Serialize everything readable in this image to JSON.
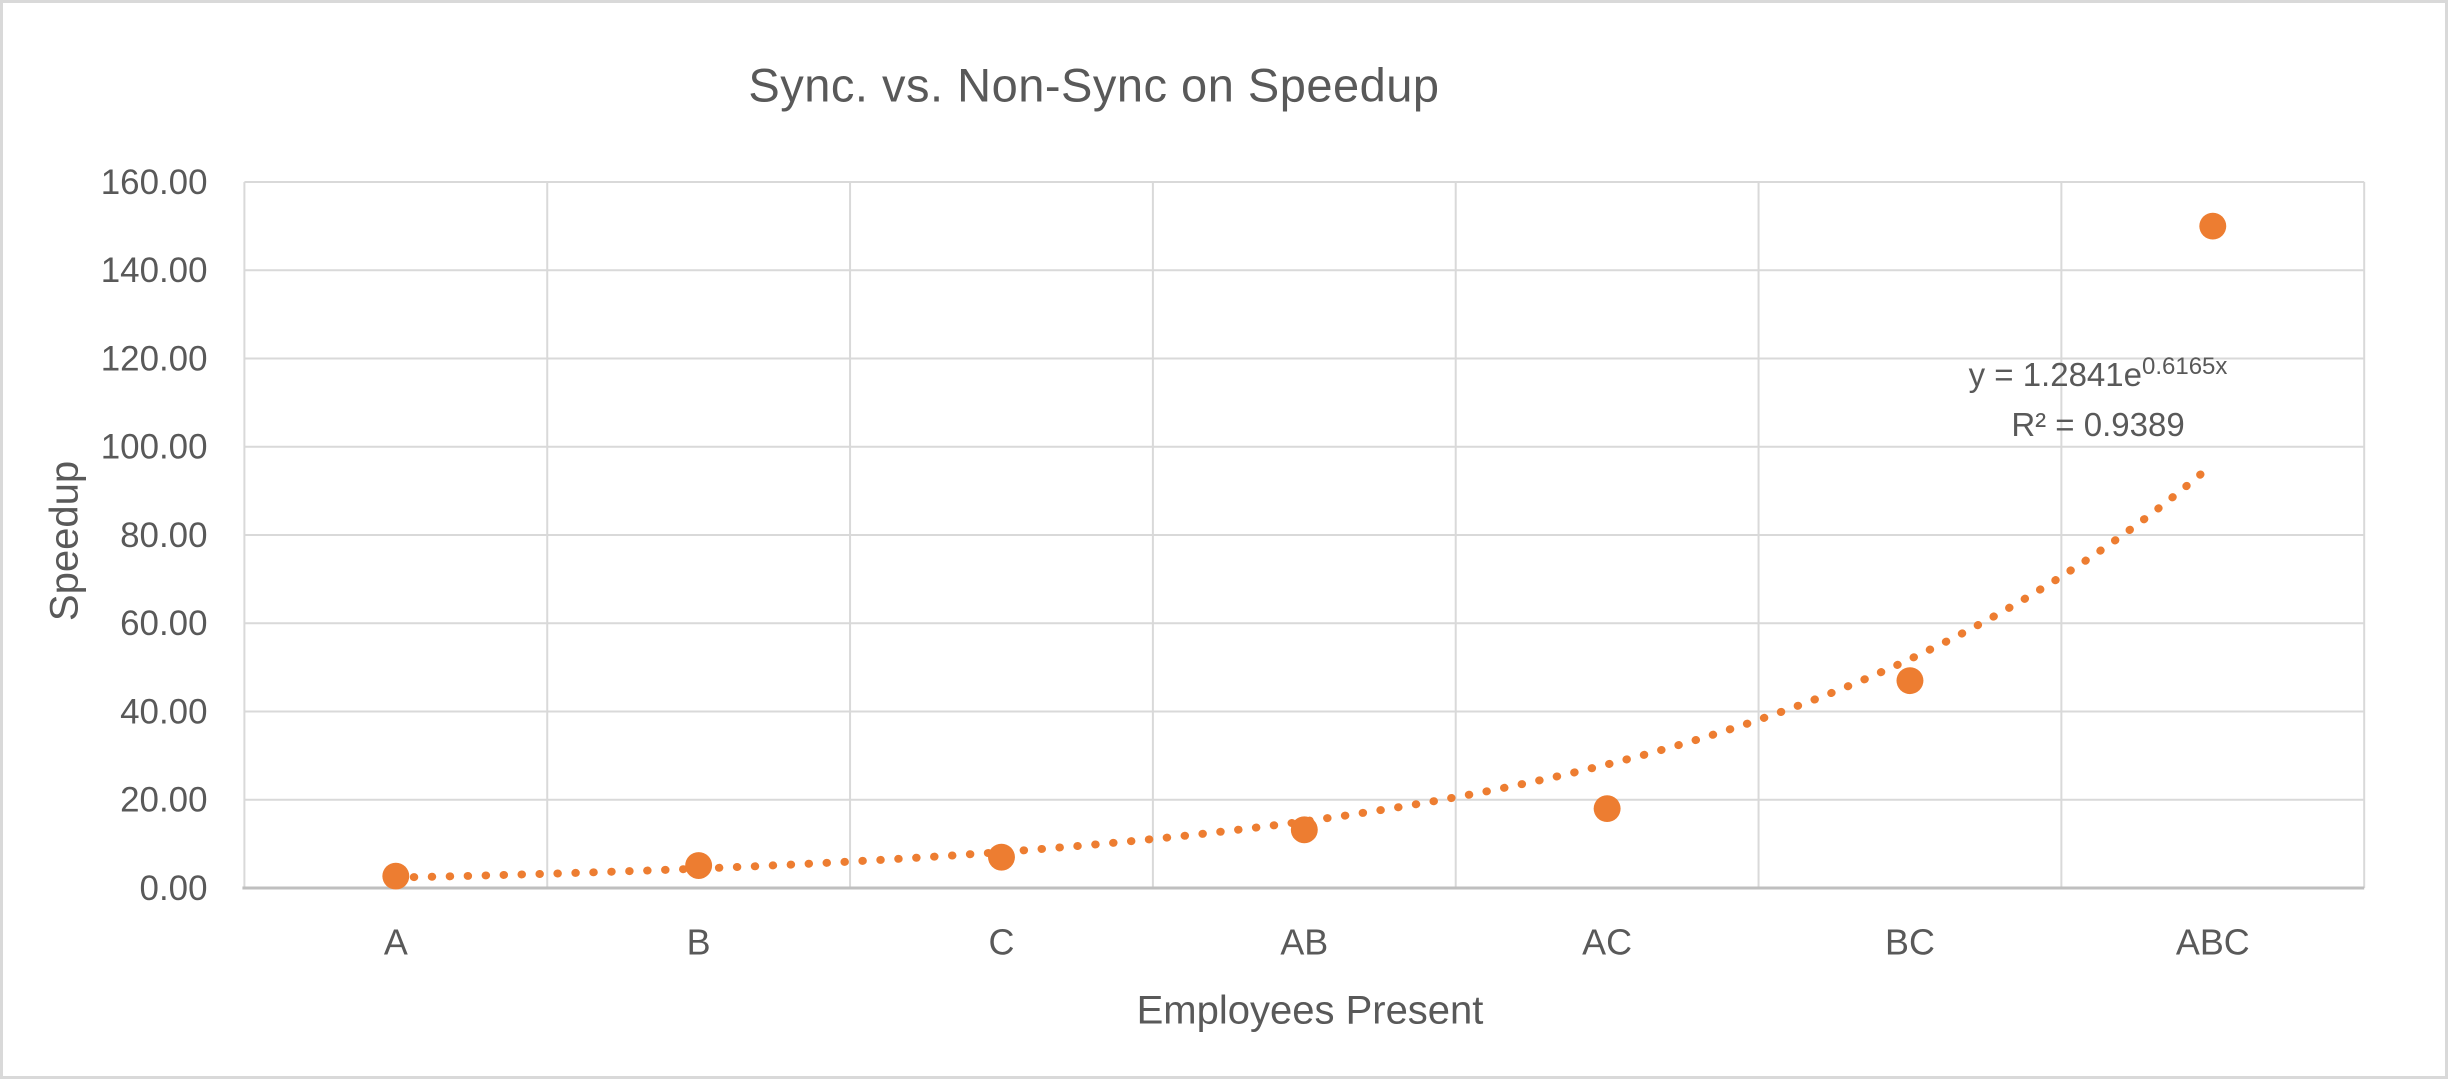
{
  "chart_data": {
    "type": "scatter",
    "title": "Sync. vs. Non-Sync on Speedup",
    "xlabel": "Employees Present",
    "ylabel": "Speedup",
    "categories": [
      "A",
      "B",
      "C",
      "AB",
      "AC",
      "BC",
      "ABC"
    ],
    "series": [
      {
        "name": "Speedup",
        "values": [
          2.7,
          5.1,
          7.0,
          13.2,
          18.0,
          47.0,
          150.0
        ]
      }
    ],
    "ylim": [
      0,
      160
    ],
    "ytick_step": 20,
    "ytick_labels": [
      "0.00",
      "20.00",
      "40.00",
      "60.00",
      "80.00",
      "100.00",
      "120.00",
      "140.00",
      "160.00"
    ],
    "grid": true,
    "legend": false,
    "trendline": {
      "kind": "exponential",
      "coef_a": 1.2841,
      "coef_b": 0.6165,
      "equation_base": "y = 1.2841e",
      "equation_exponent": "0.6165x",
      "r_squared": "R² = 0.9389",
      "style": "dotted",
      "x_range": [
        1,
        7
      ]
    },
    "colors": {
      "marker": "#ED7D31",
      "trendline": "#ED7D31",
      "text": "#595959",
      "gridline": "#D9D9D9",
      "axis_line": "#BFBFBF",
      "background": "#FFFFFF",
      "chart_border": "#D9D9D9"
    }
  }
}
